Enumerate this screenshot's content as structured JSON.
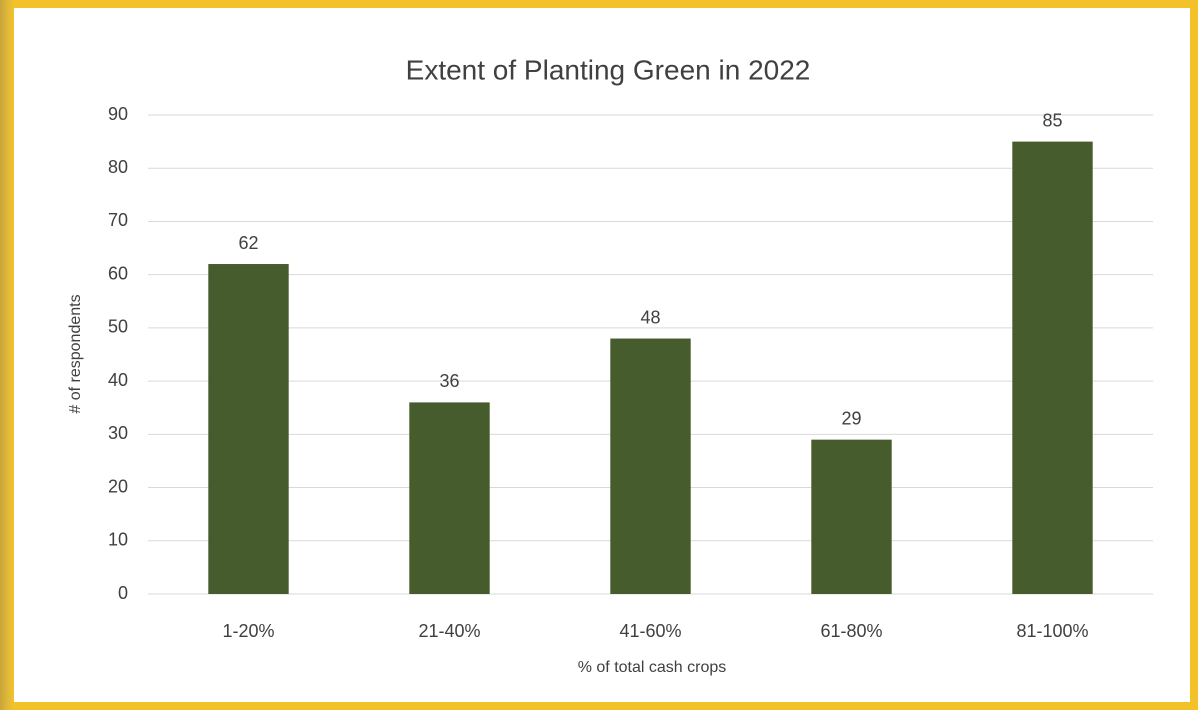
{
  "chart_data": {
    "type": "bar",
    "title": "Extent of Planting Green in 2022",
    "x_label": "% of total cash crops",
    "y_label": "# of respondents",
    "categories": [
      "1-20%",
      "21-40%",
      "41-60%",
      "61-80%",
      "81-100%"
    ],
    "values": [
      62,
      36,
      48,
      29,
      85
    ],
    "color": "#475c2c",
    "ylim": [
      0,
      90
    ],
    "yticks": [
      0,
      10,
      20,
      30,
      40,
      50,
      60,
      70,
      80,
      90
    ],
    "grid": true
  }
}
